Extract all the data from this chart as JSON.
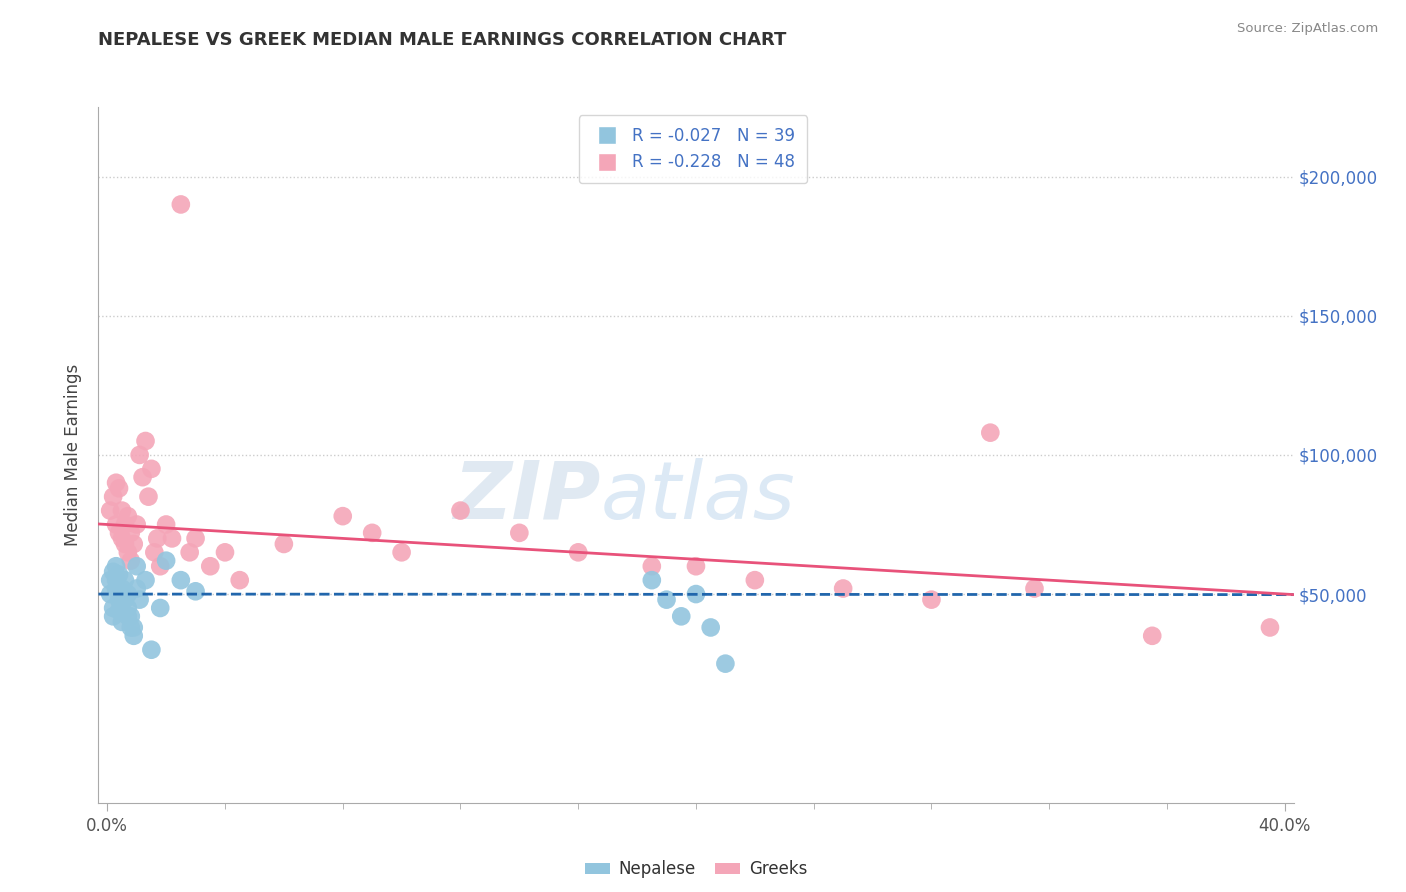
{
  "title": "NEPALESE VS GREEK MEDIAN MALE EARNINGS CORRELATION CHART",
  "source": "Source: ZipAtlas.com",
  "ylabel": "Median Male Earnings",
  "xlim": [
    -0.003,
    0.403
  ],
  "ylim": [
    -25000,
    225000
  ],
  "yticks": [
    50000,
    100000,
    150000,
    200000
  ],
  "ytick_labels": [
    "$50,000",
    "$100,000",
    "$150,000",
    "$200,000"
  ],
  "xticks_major": [
    0.0,
    0.4
  ],
  "xtick_major_labels": [
    "0.0%",
    "40.0%"
  ],
  "xticks_minor": [
    0.04,
    0.08,
    0.12,
    0.16,
    0.2,
    0.24,
    0.28,
    0.32,
    0.36
  ],
  "nepalese_R": -0.027,
  "nepalese_N": 39,
  "greek_R": -0.228,
  "greek_N": 48,
  "nepalese_color": "#92C5DE",
  "greek_color": "#F4A6B8",
  "nepalese_line_color": "#2166AC",
  "greek_line_color": "#E8527A",
  "legend_nepalese": "Nepalese",
  "legend_greek": "Greeks",
  "watermark_zip": "ZIP",
  "watermark_atlas": "atlas",
  "nepalese_x": [
    0.001,
    0.001,
    0.002,
    0.002,
    0.002,
    0.003,
    0.003,
    0.003,
    0.004,
    0.004,
    0.004,
    0.005,
    0.005,
    0.005,
    0.005,
    0.006,
    0.006,
    0.007,
    0.007,
    0.007,
    0.008,
    0.008,
    0.009,
    0.009,
    0.01,
    0.01,
    0.011,
    0.013,
    0.015,
    0.018,
    0.02,
    0.025,
    0.03,
    0.185,
    0.19,
    0.195,
    0.2,
    0.205,
    0.21
  ],
  "nepalese_y": [
    50000,
    55000,
    58000,
    45000,
    42000,
    60000,
    55000,
    52000,
    57000,
    48000,
    44000,
    52000,
    47000,
    44000,
    40000,
    55000,
    48000,
    50000,
    45000,
    42000,
    38000,
    42000,
    35000,
    38000,
    60000,
    52000,
    48000,
    55000,
    30000,
    45000,
    62000,
    55000,
    51000,
    55000,
    48000,
    42000,
    50000,
    38000,
    25000
  ],
  "greek_x": [
    0.001,
    0.002,
    0.003,
    0.003,
    0.004,
    0.004,
    0.005,
    0.005,
    0.006,
    0.006,
    0.007,
    0.007,
    0.008,
    0.008,
    0.009,
    0.01,
    0.011,
    0.012,
    0.013,
    0.014,
    0.015,
    0.016,
    0.017,
    0.018,
    0.02,
    0.022,
    0.025,
    0.028,
    0.03,
    0.035,
    0.04,
    0.045,
    0.06,
    0.08,
    0.09,
    0.1,
    0.12,
    0.14,
    0.16,
    0.185,
    0.2,
    0.22,
    0.25,
    0.28,
    0.3,
    0.315,
    0.355,
    0.395
  ],
  "greek_y": [
    80000,
    85000,
    90000,
    75000,
    88000,
    72000,
    80000,
    70000,
    75000,
    68000,
    78000,
    65000,
    72000,
    62000,
    68000,
    75000,
    100000,
    92000,
    105000,
    85000,
    95000,
    65000,
    70000,
    60000,
    75000,
    70000,
    190000,
    65000,
    70000,
    60000,
    65000,
    55000,
    68000,
    78000,
    72000,
    65000,
    80000,
    72000,
    65000,
    60000,
    60000,
    55000,
    52000,
    48000,
    108000,
    52000,
    35000,
    38000
  ]
}
